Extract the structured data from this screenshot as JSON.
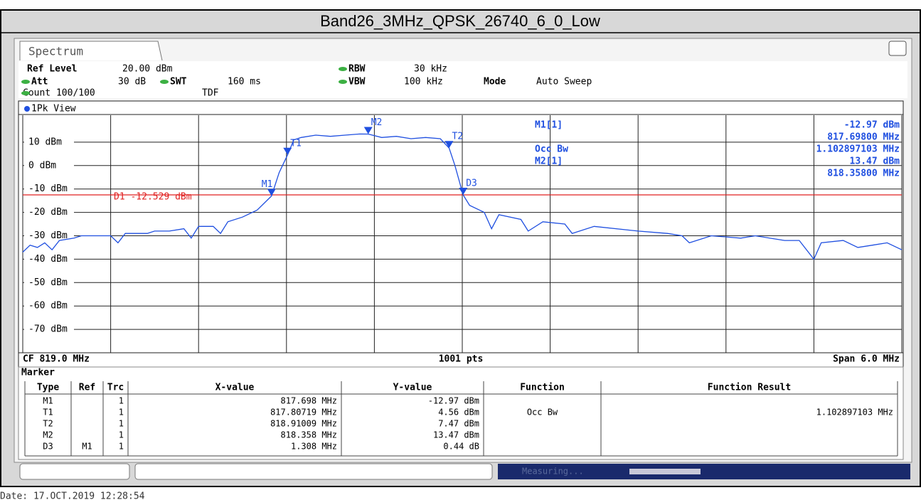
{
  "title": "Band26_3MHz_QPSK_26740_6_0_Low",
  "tab": "Spectrum",
  "header": {
    "ref_level_label": "Ref Level",
    "ref_level": "20.00 dBm",
    "att_label": "Att",
    "att": "30 dB",
    "swt_label": "SWT",
    "swt": "160 ms",
    "rbw_label": "RBW",
    "rbw": "30 kHz",
    "vbw_label": "VBW",
    "vbw": "100 kHz",
    "mode_label": "Mode",
    "mode": "Auto Sweep",
    "count": "Count 100/100",
    "tdf": "TDF"
  },
  "view_label": "1Pk View",
  "marker_info": [
    {
      "left": "M1[1]",
      "right": "-12.97 dBm"
    },
    {
      "left": null,
      "right": "817.69800 MHz"
    },
    {
      "left": "Occ Bw",
      "right": "1.102897103 MHz"
    },
    {
      "left": "M2[1]",
      "right": "13.47 dBm"
    },
    {
      "left": null,
      "right": "818.35800 MHz"
    }
  ],
  "chart_data": {
    "type": "line",
    "xlim": [
      816,
      822
    ],
    "xticks": [
      816,
      816.6,
      817.2,
      817.8,
      818.4,
      819,
      819.6,
      820.2,
      820.8,
      821.4,
      822
    ],
    "ylim": [
      -80,
      20
    ],
    "yticks": [
      {
        "value": 10,
        "label": "10 dBm"
      },
      {
        "value": 0,
        "label": "0 dBm"
      },
      {
        "value": -10,
        "label": "-10 dBm"
      },
      {
        "value": -20,
        "label": "-20 dBm"
      },
      {
        "value": -30,
        "label": "-30 dBm"
      },
      {
        "value": -40,
        "label": "-40 dBm"
      },
      {
        "value": -50,
        "label": "-50 dBm"
      },
      {
        "value": -60,
        "label": "-60 dBm"
      },
      {
        "value": -70,
        "label": "-70 dBm"
      }
    ],
    "grid": true,
    "x": [
      816.0,
      816.05,
      816.1,
      816.15,
      816.2,
      816.25,
      816.35,
      816.4,
      816.5,
      816.6,
      816.65,
      816.7,
      816.85,
      816.9,
      817.0,
      817.1,
      817.15,
      817.2,
      817.3,
      817.35,
      817.4,
      817.5,
      817.6,
      817.698,
      817.75,
      817.80719,
      817.85,
      817.9,
      818.0,
      818.1,
      818.2,
      818.3,
      818.358,
      818.45,
      818.55,
      818.65,
      818.75,
      818.85,
      818.91009,
      818.95,
      819.006,
      819.05,
      819.15,
      819.2,
      819.25,
      819.4,
      819.45,
      819.55,
      819.7,
      819.75,
      819.9,
      820.2,
      820.4,
      820.5,
      820.55,
      820.7,
      820.9,
      821.0,
      821.2,
      821.3,
      821.4,
      821.45,
      821.6,
      821.7,
      821.8,
      821.9,
      822.0
    ],
    "series": [
      {
        "name": "1Pk",
        "color": "#1f4fe0",
        "values": [
          -37,
          -34,
          -35,
          -33,
          -36,
          -32,
          -31,
          -30,
          -30,
          -30,
          -33,
          -29,
          -29,
          -28,
          -28,
          -27,
          -31,
          -26,
          -26,
          -29,
          -24,
          -22,
          -19,
          -12.97,
          -3,
          4.56,
          11,
          12,
          13,
          12.5,
          13,
          13.5,
          13.47,
          12,
          12.5,
          11.5,
          12,
          11.5,
          7.47,
          0,
          -12.53,
          -17,
          -20,
          -27,
          -21,
          -23,
          -28,
          -24,
          -25,
          -29,
          -26,
          -28,
          -29,
          -30,
          -33,
          -30,
          -31,
          -30,
          -32,
          -32,
          -40,
          -33,
          -32,
          -35,
          -34,
          -33,
          -36
        ]
      }
    ],
    "display_line": {
      "value": -12.529,
      "label": "D1 -12.529 dBm",
      "color": "#e02020"
    },
    "markers": [
      {
        "name": "M1",
        "x": 817.698,
        "y": -12.97
      },
      {
        "name": "T1",
        "x": 817.80719,
        "y": 4.56
      },
      {
        "name": "M2",
        "x": 818.358,
        "y": 13.47
      },
      {
        "name": "T2",
        "x": 818.91009,
        "y": 7.47
      },
      {
        "name": "D3",
        "x": 819.006,
        "y": -12.53
      }
    ],
    "footer": [
      "CF 819.0 MHz",
      "1001 pts",
      "Span 6.0 MHz"
    ]
  },
  "marker_table": {
    "title": "Marker",
    "columns": [
      "Type",
      "Ref",
      "Trc",
      "X-value",
      "Y-value",
      "Function",
      "Function Result"
    ],
    "rows": [
      [
        "M1",
        null,
        "1",
        "817.698 MHz",
        "-12.97 dBm",
        null,
        null
      ],
      [
        "T1",
        null,
        "1",
        "817.80719 MHz",
        "4.56 dBm",
        "Occ Bw",
        "1.102897103 MHz"
      ],
      [
        "T2",
        null,
        "1",
        "818.91009 MHz",
        "7.47 dBm",
        null,
        null
      ],
      [
        "M2",
        null,
        "1",
        "818.358 MHz",
        "13.47 dBm",
        null,
        null
      ],
      [
        "D3",
        "M1",
        "1",
        "1.308 MHz",
        "0.44 dB",
        null,
        null
      ]
    ]
  },
  "status": "Measuring...",
  "date": "Date: 17.OCT.2019  12:28:54"
}
